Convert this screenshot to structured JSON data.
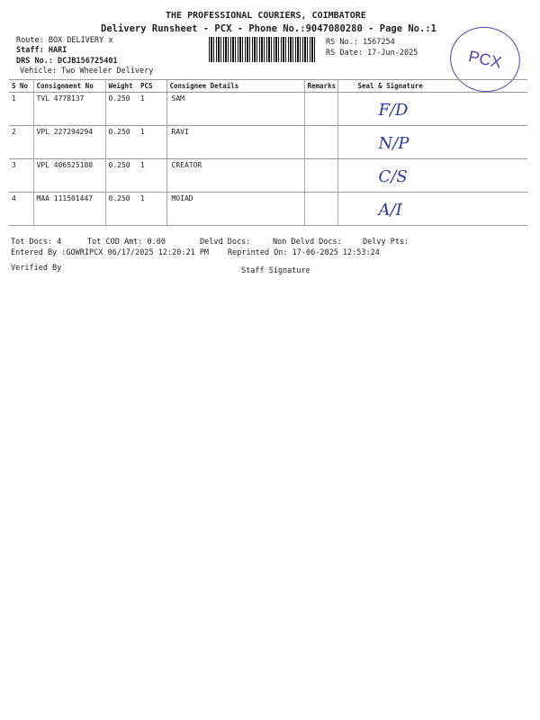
{
  "header": {
    "company": "THE PROFESSIONAL COURIERS, COIMBATORE",
    "title": "Delivery Runsheet - PCX - Phone No.:9047080280 - Page No.:1",
    "route": "Route: BOX DELIVERY x",
    "staff": "Staff: HARI",
    "drs": "DRS No.: DCJB156725401",
    "vehicle": "Vehicle: Two Wheeler Delivery",
    "rs_no": "RS No.: 1567254",
    "rs_date": "RS Date: 17-Jun-2025",
    "stamp": "PCX"
  },
  "table": {
    "columns": [
      "S No",
      "Consignment No",
      "Weight",
      "PCS",
      "Consignee Details",
      "Remarks",
      "Seal & Signature"
    ],
    "rows": [
      {
        "sno": "1",
        "consignment": "TVL 4778137",
        "weight": "0.250",
        "pcs": "1",
        "consignee": "SAM",
        "remarks": "",
        "signature": "F/D"
      },
      {
        "sno": "2",
        "consignment": "VPL 227294294",
        "weight": "0.250",
        "pcs": "1",
        "consignee": "RAVI",
        "remarks": "",
        "signature": "N/P"
      },
      {
        "sno": "3",
        "consignment": "VPL 406525180",
        "weight": "0.250",
        "pcs": "1",
        "consignee": "CREATOR",
        "remarks": "",
        "signature": "C/S"
      },
      {
        "sno": "4",
        "consignment": "MAA 111501447",
        "weight": "0.250",
        "pcs": "1",
        "consignee": "MOIAD",
        "remarks": "",
        "signature": "A/I"
      }
    ]
  },
  "footer": {
    "tot_docs": "Tot Docs:   4",
    "tot_cod": "Tot COD Amt:     0.00",
    "delvd": "Delvd Docs:",
    "non_delvd": "Non Delvd Docs:",
    "delvy_pts": "Delvy Pts:",
    "entered_by": "Entered By :GOWRIPCX 06/17/2025 12:20:21 PM",
    "reprinted": "Reprinted On: 17-06-2025 12:53:24",
    "verified_by": "Verified By",
    "staff_signature": "Staff Signature"
  }
}
